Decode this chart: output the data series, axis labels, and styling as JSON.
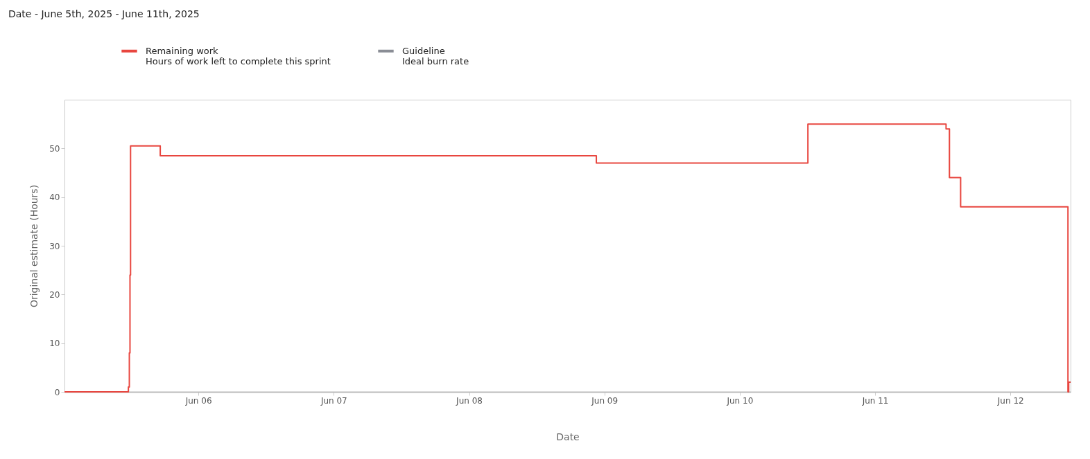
{
  "chart_data": {
    "type": "step",
    "title": "Date - June 5th, 2025 - June 11th, 2025",
    "xlabel": "Date",
    "ylabel": "Original estimate (Hours)",
    "series": [
      {
        "name": "Remaining work",
        "color": "#e8463f",
        "x": [
          "2025-06-05T00:15",
          "2025-06-05T11:35",
          "2025-06-05T11:45",
          "2025-06-05T11:52",
          "2025-06-05T11:58",
          "2025-06-05T17:14",
          "2025-06-08T22:34",
          "2025-06-10T12:05",
          "2025-06-11T12:35",
          "2025-06-11T13:11",
          "2025-06-11T15:10",
          "2025-06-12T10:12",
          "2025-06-12T10:20",
          "2025-06-12T10:40"
        ],
        "values": [
          0,
          1,
          8,
          24,
          50.5,
          48.5,
          47,
          55,
          54,
          44,
          38,
          0,
          2,
          2
        ]
      },
      {
        "name": "Guideline",
        "color": "#8a8d95"
      }
    ],
    "annotations": [
      "Hours of work left to complete this sprint",
      "Ideal burn rate"
    ],
    "xlim": [
      "2025-06-05T00:15",
      "2025-06-12T10:40"
    ],
    "xticks": [
      {
        "value": "2025-06-06",
        "label": "Jun 06"
      },
      {
        "value": "2025-06-07",
        "label": "Jun 07"
      },
      {
        "value": "2025-06-08",
        "label": "Jun 08"
      },
      {
        "value": "2025-06-09",
        "label": "Jun 09"
      },
      {
        "value": "2025-06-10",
        "label": "Jun 10"
      },
      {
        "value": "2025-06-11",
        "label": "Jun 11"
      },
      {
        "value": "2025-06-12",
        "label": "Jun 12"
      }
    ],
    "ylim": [
      0,
      60
    ],
    "yticks": [
      0,
      10,
      20,
      30,
      40,
      50
    ],
    "grid": false,
    "legend": "top left",
    "marker": "none",
    "line_style": "solid"
  }
}
